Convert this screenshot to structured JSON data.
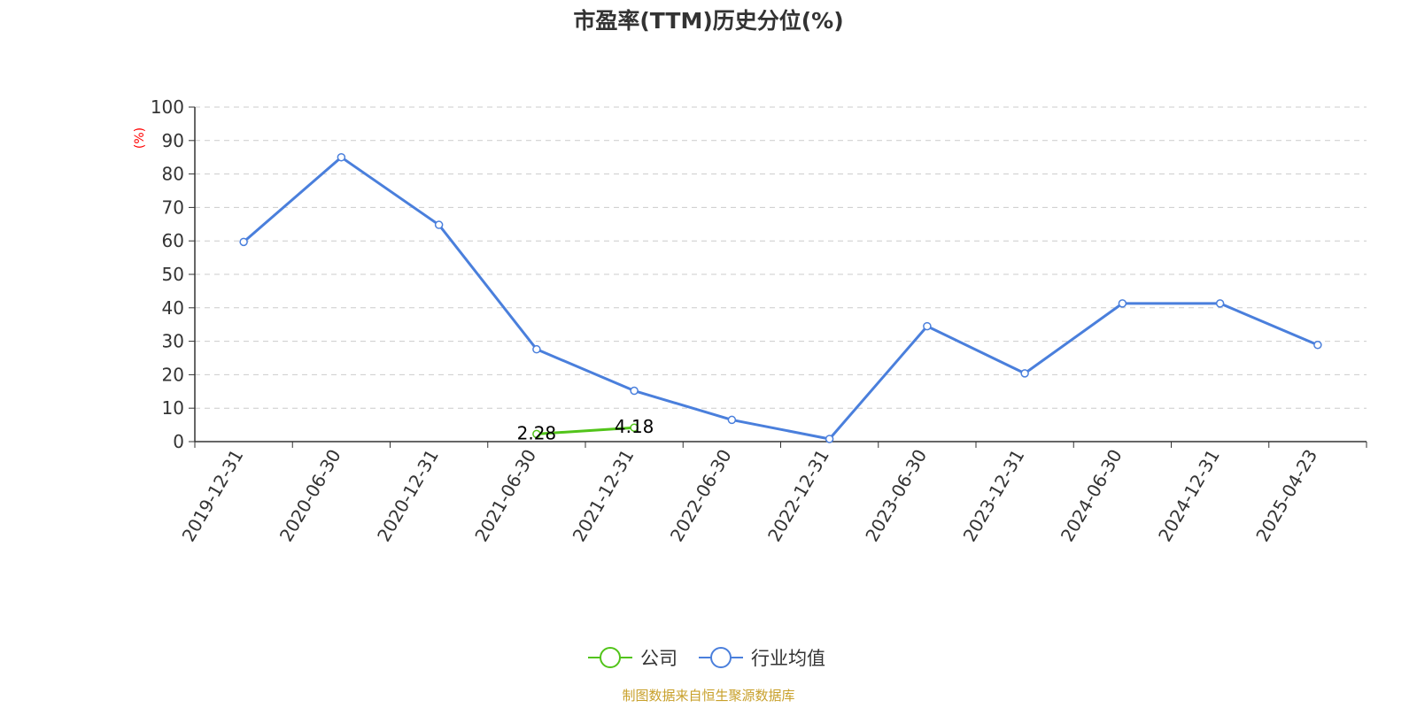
{
  "chart_data": {
    "type": "line",
    "title": "市盈率(TTM)历史分位(%)",
    "ylabel": "(%)",
    "ylim": [
      0,
      100
    ],
    "yticks": [
      0,
      10,
      20,
      30,
      40,
      50,
      60,
      70,
      80,
      90,
      100
    ],
    "grid": true,
    "legend_position": "bottom",
    "categories": [
      "2019-12-31",
      "2020-06-30",
      "2020-12-31",
      "2021-06-30",
      "2021-12-31",
      "2022-06-30",
      "2022-12-31",
      "2023-06-30",
      "2023-12-31",
      "2024-06-30",
      "2024-12-31",
      "2025-04-23"
    ],
    "series": [
      {
        "name": "公司",
        "color": "#52c41a",
        "values": [
          null,
          null,
          null,
          2.28,
          4.18,
          null,
          null,
          null,
          null,
          null,
          null,
          null
        ],
        "show_labels": true
      },
      {
        "name": "行业均值",
        "color": "#4a7fdc",
        "values": [
          59.7,
          85.0,
          64.8,
          27.6,
          15.2,
          6.5,
          0.8,
          34.5,
          20.4,
          41.3,
          41.3,
          28.9
        ],
        "show_labels": false
      }
    ]
  },
  "source_text": "制图数据来自恒生聚源数据库"
}
